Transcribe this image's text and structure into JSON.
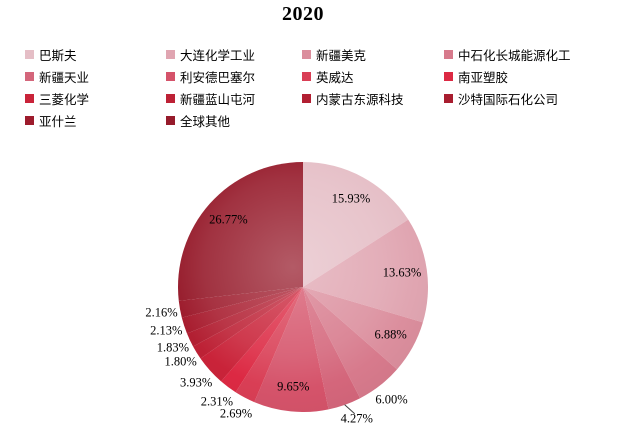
{
  "title": "2020",
  "chart_data": {
    "type": "pie",
    "title": "2020",
    "legend_position": "top",
    "legend_columns": 4,
    "direction": "clockwise-from-top",
    "value_format": "percent-2dp",
    "label_color": "#000000",
    "series": [
      {
        "name": "巴斯夫",
        "value": 15.93,
        "color": "#e5bec6",
        "label_placement": "inside"
      },
      {
        "name": "大连化学工业",
        "value": 13.63,
        "color": "#e0a5b1",
        "label_placement": "inside"
      },
      {
        "name": "新疆美克",
        "value": 6.88,
        "color": "#db8e9d",
        "label_placement": "inside"
      },
      {
        "name": "中石化长城能源化工",
        "value": 6.0,
        "color": "#d77a8c",
        "label_placement": "outside"
      },
      {
        "name": "新疆天业",
        "value": 4.27,
        "color": "#d4667b",
        "label_placement": "outside-leader"
      },
      {
        "name": "利安德巴塞尔",
        "value": 9.65,
        "color": "#d5536a",
        "label_placement": "inside"
      },
      {
        "name": "英威达",
        "value": 2.69,
        "color": "#d93e55",
        "label_placement": "outside"
      },
      {
        "name": "南亚塑胶",
        "value": 2.31,
        "color": "#dc2943",
        "label_placement": "outside"
      },
      {
        "name": "三菱化学",
        "value": 3.93,
        "color": "#c92339",
        "label_placement": "outside"
      },
      {
        "name": "新疆蓝山屯河",
        "value": 1.8,
        "color": "#bd2135",
        "label_placement": "outside"
      },
      {
        "name": "内蒙古东源科技",
        "value": 1.83,
        "color": "#b21f32",
        "label_placement": "outside"
      },
      {
        "name": "沙特国际石化公司",
        "value": 2.13,
        "color": "#a81d2f",
        "label_placement": "outside"
      },
      {
        "name": "亚什兰",
        "value": 2.16,
        "color": "#9d1b2c",
        "label_placement": "outside"
      },
      {
        "name": "全球其他",
        "value": 26.77,
        "color": "#961b2b",
        "label_placement": "inside"
      }
    ]
  }
}
